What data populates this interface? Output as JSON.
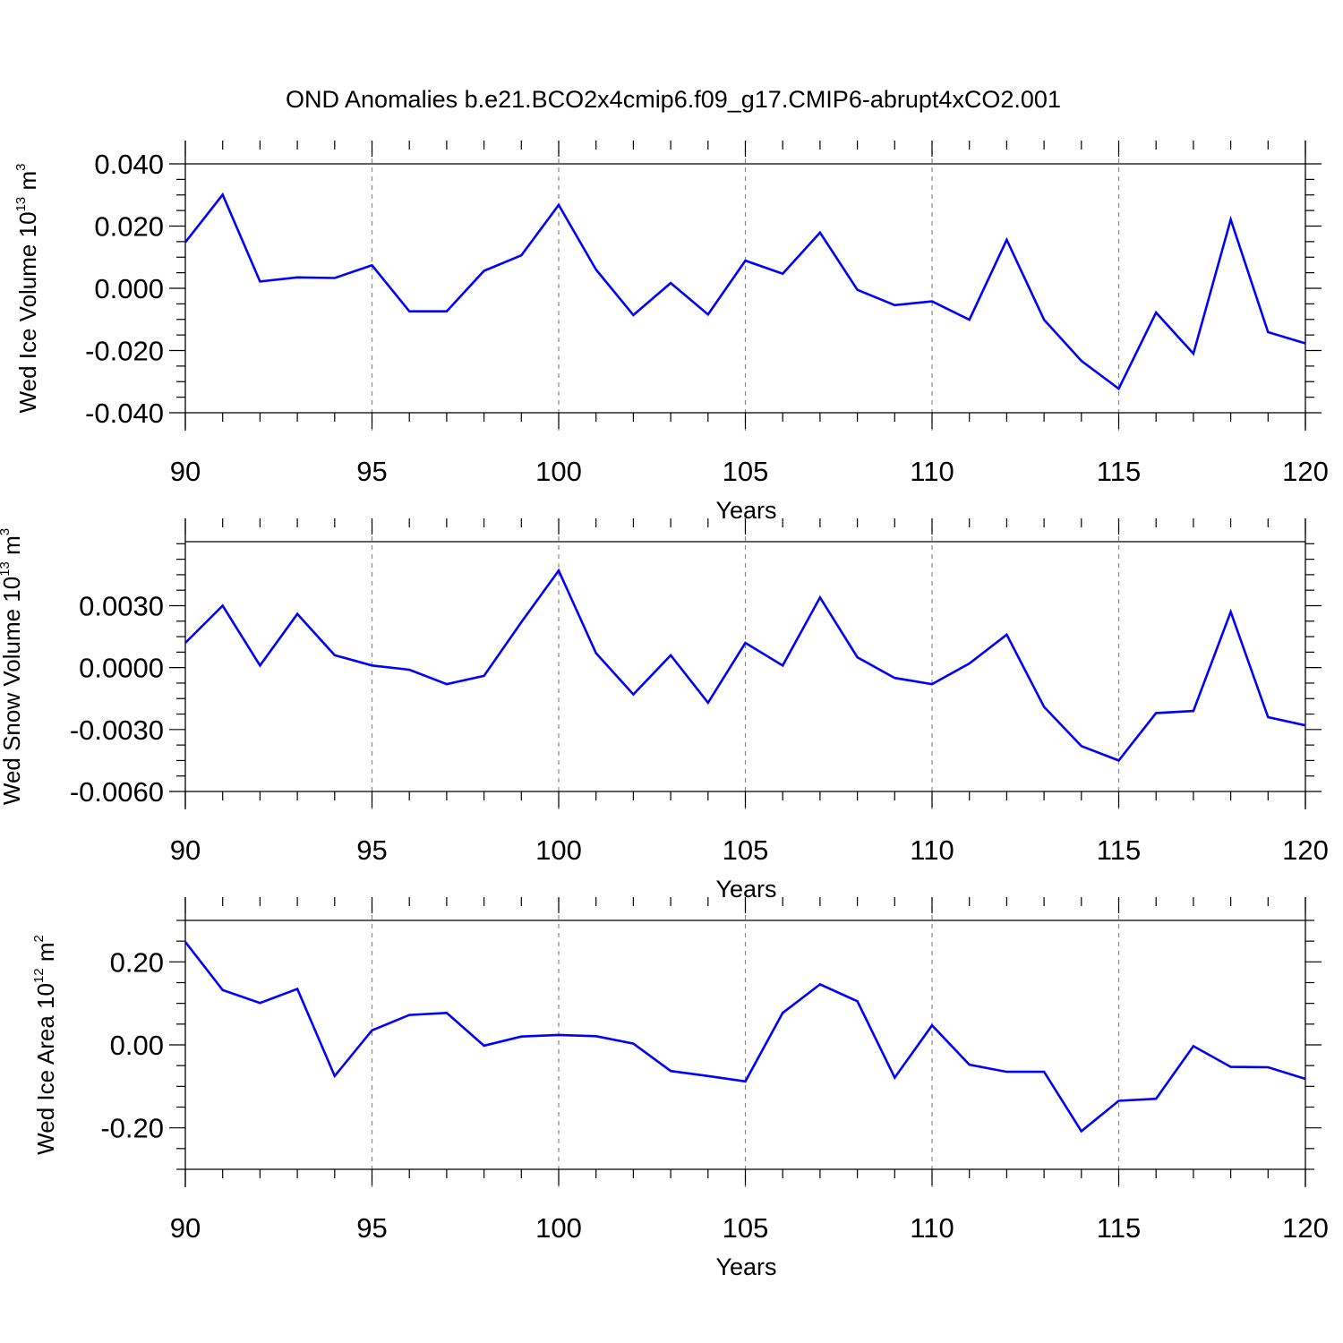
{
  "figure": {
    "title": "OND Anomalies b.e21.BCO2x4cmip6.f09_g17.CMIP6-abrupt4xCO2.001"
  },
  "chart_data": [
    {
      "type": "line",
      "title": "OND Anomalies b.e21.BCO2x4cmip6.f09_g17.CMIP6-abrupt4xCO2.001",
      "xlabel": "Years",
      "ylabel": {
        "main": "Wed Ice Volume 10",
        "exp": "13",
        "unit": " m",
        "unit_exp": "3"
      },
      "xlim": [
        90,
        120
      ],
      "ylim": [
        -0.04,
        0.04
      ],
      "xticks": [
        "90",
        "95",
        "100",
        "105",
        "110",
        "115",
        "120"
      ],
      "yticks": [
        {
          "v": 0.04,
          "label": "0.040"
        },
        {
          "v": 0.02,
          "label": "0.020"
        },
        {
          "v": 0.0,
          "label": "0.000"
        },
        {
          "v": -0.02,
          "label": "-0.020"
        },
        {
          "v": -0.04,
          "label": "-0.040"
        }
      ],
      "grid": "vertical dashed at major x ticks",
      "color": "#0000ff",
      "x": [
        90,
        91,
        92,
        93,
        94,
        95,
        96,
        97,
        98,
        99,
        100,
        101,
        102,
        103,
        104,
        105,
        106,
        107,
        108,
        109,
        110,
        111,
        112,
        113,
        114,
        115,
        116,
        117,
        118,
        119,
        120
      ],
      "values": [
        0.0148,
        0.0301,
        0.0022,
        0.0035,
        0.0033,
        0.0074,
        -0.0074,
        -0.0074,
        0.0056,
        0.0106,
        0.0268,
        0.006,
        -0.0086,
        0.0017,
        -0.0084,
        0.0089,
        0.0047,
        0.0179,
        -0.0005,
        -0.0054,
        -0.0042,
        -0.0101,
        0.0156,
        -0.0101,
        -0.0233,
        -0.0323,
        -0.0078,
        -0.021,
        0.0221,
        -0.0141,
        -0.0177
      ]
    },
    {
      "type": "line",
      "xlabel": "Years",
      "ylabel": {
        "main": "Wed Snow Volume 10",
        "exp": "13",
        "unit": " m",
        "unit_exp": "3"
      },
      "xlim": [
        90,
        120
      ],
      "ylim": [
        -0.006,
        0.0061
      ],
      "xticks": [
        "90",
        "95",
        "100",
        "105",
        "110",
        "115",
        "120"
      ],
      "yticks": [
        {
          "v": 0.003,
          "label": "0.0030"
        },
        {
          "v": 0.0,
          "label": "0.0000"
        },
        {
          "v": -0.003,
          "label": "-0.0030"
        },
        {
          "v": -0.006,
          "label": "-0.0060"
        }
      ],
      "grid": "vertical dashed at major x ticks",
      "color": "#0000ff",
      "x": [
        90,
        91,
        92,
        93,
        94,
        95,
        96,
        97,
        98,
        99,
        100,
        101,
        102,
        103,
        104,
        105,
        106,
        107,
        108,
        109,
        110,
        111,
        112,
        113,
        114,
        115,
        116,
        117,
        118,
        119,
        120
      ],
      "values": [
        0.0012,
        0.003,
        0.0001,
        0.0026,
        0.0006,
        0.0001,
        -0.0001,
        -0.0008,
        -0.0004,
        0.0022,
        0.0047,
        0.0007,
        -0.0013,
        0.0006,
        -0.0017,
        0.0012,
        0.0001,
        0.0034,
        0.0005,
        -0.0005,
        -0.0008,
        0.0002,
        0.0016,
        -0.0019,
        -0.0038,
        -0.0045,
        -0.0022,
        -0.0021,
        0.0027,
        -0.0024,
        -0.0028
      ]
    },
    {
      "type": "line",
      "xlabel": "Years",
      "ylabel": {
        "main": "Wed Ice Area 10",
        "exp": "12",
        "unit": " m",
        "unit_exp": "2"
      },
      "xlim": [
        90,
        120
      ],
      "ylim": [
        -0.3,
        0.3
      ],
      "xticks": [
        "90",
        "95",
        "100",
        "105",
        "110",
        "115",
        "120"
      ],
      "yticks": [
        {
          "v": 0.2,
          "label": "0.20"
        },
        {
          "v": 0.0,
          "label": "0.00"
        },
        {
          "v": -0.2,
          "label": "-0.20"
        }
      ],
      "grid": "vertical dashed at major x ticks",
      "color": "#0000ff",
      "x": [
        90,
        91,
        92,
        93,
        94,
        95,
        96,
        97,
        98,
        99,
        100,
        101,
        102,
        103,
        104,
        105,
        106,
        107,
        108,
        109,
        110,
        111,
        112,
        113,
        114,
        115,
        116,
        117,
        118,
        119,
        120
      ],
      "values": [
        0.248,
        0.132,
        0.101,
        0.135,
        -0.075,
        0.035,
        0.072,
        0.077,
        -0.002,
        0.02,
        0.024,
        0.021,
        0.003,
        -0.063,
        -0.075,
        -0.088,
        0.077,
        0.146,
        0.105,
        -0.079,
        0.047,
        -0.048,
        -0.065,
        -0.065,
        -0.208,
        -0.135,
        -0.13,
        -0.003,
        -0.053,
        -0.054,
        -0.082
      ]
    }
  ]
}
